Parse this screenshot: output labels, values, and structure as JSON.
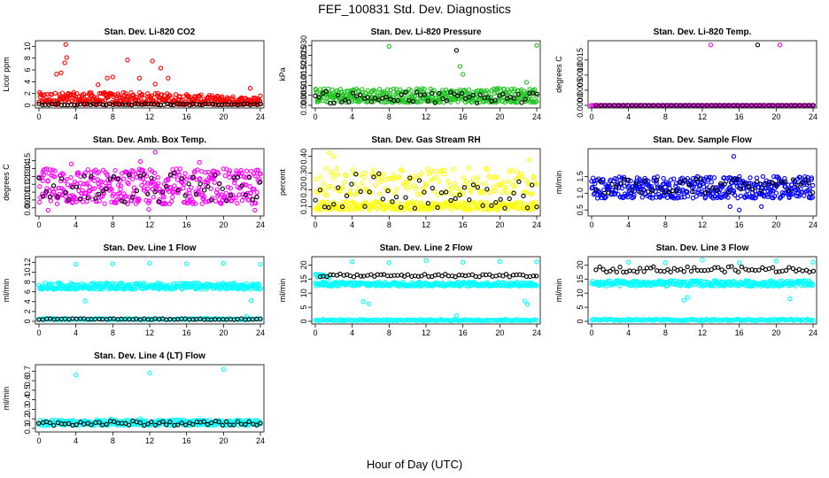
{
  "figure": {
    "title": "FEF_100831  Std. Dev. Diagnostics",
    "xlabel": "Hour of Day (UTC)"
  },
  "colors": {
    "red": "#ff0000",
    "green": "#22c422",
    "magenta": "#ff00ff",
    "yellow": "#ffff00",
    "blue": "#0000ff",
    "cyan": "#00ffff",
    "black": "#000000"
  },
  "chart_data": [
    {
      "type": "scatter",
      "title": "Stan. Dev. Li-820 CO2",
      "ylabel": "Licor ppm",
      "xlim": [
        0,
        24
      ],
      "ylim": [
        0,
        10.5
      ],
      "xticks": [
        "0",
        "4",
        "8",
        "12",
        "16",
        "20",
        "24"
      ],
      "yticks": [
        {
          "v": 0,
          "l": "0"
        },
        {
          "v": 2,
          "l": "2"
        },
        {
          "v": 4,
          "l": "4"
        },
        {
          "v": 6,
          "l": "6"
        },
        {
          "v": 8,
          "l": "8"
        },
        {
          "v": 10,
          "l": "10"
        }
      ],
      "series": [
        {
          "color": "red",
          "band": {
            "start": 0,
            "end": 24,
            "lo": 0.1,
            "hi": 2.2,
            "n": 380,
            "taper": 0.4
          },
          "points": [
            [
              2.9,
              10.3
            ],
            [
              3.0,
              8.1
            ],
            [
              2.8,
              7.2
            ],
            [
              9.6,
              7.7
            ],
            [
              12.3,
              7.5
            ],
            [
              13.2,
              6.3
            ],
            [
              1.9,
              5.3
            ],
            [
              2.4,
              5.5
            ],
            [
              7.4,
              4.6
            ],
            [
              8.0,
              4.8
            ],
            [
              10.9,
              4.6
            ],
            [
              14.0,
              4.6
            ],
            [
              6.4,
              3.5
            ],
            [
              12.6,
              3.6
            ],
            [
              22.9,
              2.9
            ],
            [
              24.0,
              1.6
            ]
          ]
        },
        {
          "color": "black",
          "band": {
            "start": 0,
            "end": 24,
            "lo": 0.05,
            "hi": 0.3,
            "n": 70
          }
        }
      ]
    },
    {
      "type": "scatter",
      "title": "Stan. Dev. Li-820 Pressure",
      "ylabel": "kPa",
      "xlim": [
        0,
        24
      ],
      "ylim": [
        0,
        0.031
      ],
      "xticks": [
        "0",
        "4",
        "8",
        "12",
        "16",
        "20",
        "24"
      ],
      "yticks": [
        {
          "v": 0,
          "l": "0.000"
        },
        {
          "v": 0.005,
          "l": "0.005"
        },
        {
          "v": 0.01,
          "l": "0.010"
        },
        {
          "v": 0.015,
          "l": "0.015"
        },
        {
          "v": 0.02,
          "l": "0.020"
        },
        {
          "v": 0.025,
          "l": "0.025"
        },
        {
          "v": 0.03,
          "l": "0.030"
        }
      ],
      "series": [
        {
          "color": "green",
          "band": {
            "start": 0,
            "end": 24,
            "lo": 0.0015,
            "hi": 0.0085,
            "n": 420
          },
          "points": [
            [
              8.0,
              0.0295
            ],
            [
              24.0,
              0.03
            ],
            [
              15.7,
              0.0195
            ],
            [
              16.0,
              0.0155
            ],
            [
              22.9,
              0.0115
            ]
          ]
        },
        {
          "color": "black",
          "band": {
            "start": 0,
            "end": 24,
            "lo": 0.001,
            "hi": 0.007,
            "n": 60
          },
          "points": [
            [
              15.3,
              0.0275
            ]
          ]
        }
      ]
    },
    {
      "type": "scatter",
      "title": "Stan. Dev. Li-820 Temp.",
      "ylabel": "degrees C",
      "xlim": [
        0,
        24
      ],
      "ylim": [
        0,
        0.00205
      ],
      "xticks": [
        "0",
        "4",
        "8",
        "12",
        "16",
        "20",
        "24"
      ],
      "yticks": [
        {
          "v": 0,
          "l": "0.0000"
        },
        {
          "v": 0.0005,
          "l": "0.0005"
        },
        {
          "v": 0.001,
          "l": "0.0010"
        },
        {
          "v": 0.0015,
          "l": "0.0015"
        }
      ],
      "series": [
        {
          "color": "magenta",
          "band": {
            "start": 0,
            "end": 24,
            "lo": 0,
            "hi": 0,
            "n": 200
          },
          "points": [
            [
              12.9,
              0.002
            ],
            [
              20.4,
              0.002
            ]
          ]
        },
        {
          "color": "black",
          "band": {
            "start": 0.5,
            "end": 24,
            "lo": 0,
            "hi": 0,
            "n": 50
          },
          "points": [
            [
              18.0,
              0.002
            ]
          ]
        }
      ]
    },
    {
      "type": "scatter",
      "title": "Stan. Dev. Amb. Box Temp.",
      "ylabel": "degrees C",
      "xlim": [
        0,
        24
      ],
      "ylim": [
        0.083,
        0.162
      ],
      "xticks": [
        "0",
        "4",
        "8",
        "12",
        "16",
        "20",
        "24"
      ],
      "yticks": [
        {
          "v": 0.09,
          "l": "0.09"
        },
        {
          "v": 0.1,
          "l": "0.10"
        },
        {
          "v": 0.11,
          "l": "0.11"
        },
        {
          "v": 0.12,
          "l": "0.12"
        },
        {
          "v": 0.13,
          "l": "0.13"
        },
        {
          "v": 0.14,
          "l": "0.14"
        },
        {
          "v": 0.15,
          "l": "0.15"
        }
      ],
      "series": [
        {
          "color": "magenta",
          "band": {
            "start": 0,
            "end": 24,
            "lo": 0.095,
            "hi": 0.14,
            "n": 430
          },
          "points": [
            [
              12.6,
              0.161
            ],
            [
              3.5,
              0.146
            ],
            [
              11.0,
              0.149
            ],
            [
              1.0,
              0.087
            ],
            [
              11.9,
              0.088
            ],
            [
              23.4,
              0.087
            ],
            [
              17.4,
              0.148
            ]
          ]
        },
        {
          "color": "black",
          "band": {
            "start": 0,
            "end": 24,
            "lo": 0.097,
            "hi": 0.135,
            "n": 60
          }
        }
      ]
    },
    {
      "type": "scatter",
      "title": "Stan. Dev. Gas Stream RH",
      "ylabel": "percent",
      "xlim": [
        0,
        24
      ],
      "ylim": [
        0.06,
        0.43
      ],
      "xticks": [
        "0",
        "4",
        "8",
        "12",
        "16",
        "20",
        "24"
      ],
      "yticks": [
        {
          "v": 0.1,
          "l": "0.10"
        },
        {
          "v": 0.2,
          "l": "0.20"
        },
        {
          "v": 0.3,
          "l": "0.30"
        },
        {
          "v": 0.4,
          "l": "0.40"
        }
      ],
      "series": [
        {
          "color": "yellow",
          "band": {
            "start": 0,
            "end": 24,
            "lo": 0.08,
            "hi": 0.13,
            "n": 260
          }
        },
        {
          "color": "yellow",
          "band": {
            "start": 0,
            "end": 24,
            "lo": 0.17,
            "hi": 0.33,
            "n": 180
          },
          "points": [
            [
              1.5,
              0.42
            ],
            [
              2.0,
              0.4
            ],
            [
              23.2,
              0.38
            ]
          ]
        },
        {
          "color": "black",
          "band": {
            "start": 0,
            "end": 24,
            "lo": 0.09,
            "hi": 0.3,
            "n": 50
          }
        }
      ]
    },
    {
      "type": "scatter",
      "title": "Stan. Dev. Sample Flow",
      "ylabel": "ml/min",
      "xlim": [
        0,
        24
      ],
      "ylim": [
        0.4,
        2.25
      ],
      "xticks": [
        "0",
        "4",
        "8",
        "12",
        "16",
        "20",
        "24"
      ],
      "yticks": [
        {
          "v": 0.5,
          "l": "0.5"
        },
        {
          "v": 1.0,
          "l": "1.0"
        },
        {
          "v": 1.5,
          "l": "1.5"
        }
      ],
      "series": [
        {
          "color": "blue",
          "band": {
            "start": 0,
            "end": 24,
            "lo": 0.85,
            "hi": 1.5,
            "n": 430
          },
          "points": [
            [
              15.4,
              2.1
            ],
            [
              15.0,
              0.6
            ],
            [
              16.0,
              0.5
            ],
            [
              18.4,
              0.6
            ]
          ]
        },
        {
          "color": "black",
          "band": {
            "start": 0.5,
            "end": 24,
            "lo": 1.0,
            "hi": 1.45,
            "n": 55
          }
        }
      ]
    },
    {
      "type": "scatter",
      "title": "Stan. Dev. Line 1 Flow",
      "ylabel": "ml/min",
      "xlim": [
        0,
        24
      ],
      "ylim": [
        0,
        12.6
      ],
      "xticks": [
        "0",
        "4",
        "8",
        "12",
        "16",
        "20",
        "24"
      ],
      "yticks": [
        {
          "v": 0,
          "l": "0"
        },
        {
          "v": 2,
          "l": "2"
        },
        {
          "v": 4,
          "l": "4"
        },
        {
          "v": 6,
          "l": "6"
        },
        {
          "v": 8,
          "l": "8"
        },
        {
          "v": 10,
          "l": "10"
        },
        {
          "v": 12,
          "l": "12"
        }
      ],
      "series": [
        {
          "color": "cyan",
          "band": {
            "start": 0,
            "end": 24,
            "lo": 6.5,
            "hi": 7.8,
            "n": 330
          },
          "points": [
            [
              4.0,
              11.6
            ],
            [
              8.0,
              11.7
            ],
            [
              12.0,
              11.8
            ],
            [
              16.0,
              11.7
            ],
            [
              20.0,
              11.8
            ],
            [
              24.0,
              11.6
            ],
            [
              5.0,
              4.2
            ],
            [
              23.0,
              4.2
            ],
            [
              22.5,
              1.0
            ]
          ]
        },
        {
          "color": "cyan",
          "band": {
            "start": 0,
            "end": 24,
            "lo": 0.3,
            "hi": 0.6,
            "n": 120
          }
        },
        {
          "color": "black",
          "band": {
            "start": 0,
            "end": 24,
            "lo": 0.35,
            "hi": 0.55,
            "n": 60
          }
        }
      ]
    },
    {
      "type": "scatter",
      "title": "Stan. Dev. Line 2 Flow",
      "ylabel": "ml/min",
      "xlim": [
        0,
        24
      ],
      "ylim": [
        0,
        22
      ],
      "xticks": [
        "0",
        "4",
        "8",
        "12",
        "16",
        "20",
        "24"
      ],
      "yticks": [
        {
          "v": 0,
          "l": "0"
        },
        {
          "v": 5,
          "l": "5"
        },
        {
          "v": 10,
          "l": "10"
        },
        {
          "v": 15,
          "l": "15"
        },
        {
          "v": 20,
          "l": "20"
        }
      ],
      "series": [
        {
          "color": "cyan",
          "band": {
            "start": 0,
            "end": 24,
            "lo": 12.5,
            "hi": 14.0,
            "n": 300
          },
          "points": [
            [
              4.0,
              21.2
            ],
            [
              8.0,
              20.8
            ],
            [
              12.0,
              21.6
            ],
            [
              16.0,
              21.0
            ],
            [
              20.0,
              21.3
            ],
            [
              24.0,
              21.1
            ],
            [
              15.3,
              2.0
            ],
            [
              5.2,
              7.0
            ],
            [
              5.8,
              6.2
            ],
            [
              22.7,
              7.2
            ],
            [
              23.0,
              6.0
            ]
          ]
        },
        {
          "color": "cyan",
          "band": {
            "start": 0,
            "end": 24,
            "lo": 0.2,
            "hi": 0.7,
            "n": 150
          }
        },
        {
          "color": "cyan",
          "band": {
            "start": 0,
            "end": 1.5,
            "lo": 15.5,
            "hi": 16.8,
            "n": 15
          }
        },
        {
          "color": "black",
          "band": {
            "start": 0.5,
            "end": 24,
            "lo": 15.8,
            "hi": 16.8,
            "n": 65
          }
        }
      ]
    },
    {
      "type": "scatter",
      "title": "Stan. Dev. Line 3 Flow",
      "ylabel": "ml/min",
      "xlim": [
        0,
        24
      ],
      "ylim": [
        0,
        22
      ],
      "xticks": [
        "0",
        "4",
        "8",
        "12",
        "16",
        "20",
        "24"
      ],
      "yticks": [
        {
          "v": 0,
          "l": "0"
        },
        {
          "v": 5,
          "l": "5"
        },
        {
          "v": 10,
          "l": "10"
        },
        {
          "v": 15,
          "l": "15"
        },
        {
          "v": 20,
          "l": "20"
        }
      ],
      "series": [
        {
          "color": "cyan",
          "band": {
            "start": 0,
            "end": 24,
            "lo": 12.5,
            "hi": 14.5,
            "n": 300
          },
          "points": [
            [
              4.0,
              21.0
            ],
            [
              8.0,
              20.8
            ],
            [
              12.0,
              21.8
            ],
            [
              16.0,
              20.8
            ],
            [
              20.0,
              21.4
            ],
            [
              24.0,
              21.0
            ],
            [
              10.0,
              7.5
            ],
            [
              10.4,
              8.5
            ],
            [
              21.5,
              8.0
            ]
          ]
        },
        {
          "color": "cyan",
          "band": {
            "start": 0,
            "end": 24,
            "lo": 0.2,
            "hi": 0.8,
            "n": 150
          }
        },
        {
          "color": "black",
          "band": {
            "start": 0.5,
            "end": 24,
            "lo": 17.5,
            "hi": 19.5,
            "n": 65
          }
        }
      ]
    },
    {
      "type": "scatter",
      "title": "Stan. Dev. Line 4 (LT) Flow",
      "ylabel": "ml/min",
      "xlim": [
        0,
        24
      ],
      "ylim": [
        0.09,
        0.74
      ],
      "xticks": [
        "0",
        "4",
        "8",
        "12",
        "16",
        "20",
        "24"
      ],
      "yticks": [
        {
          "v": 0.1,
          "l": "0.1"
        },
        {
          "v": 0.2,
          "l": "0.2"
        },
        {
          "v": 0.3,
          "l": "0.3"
        },
        {
          "v": 0.4,
          "l": "0.4"
        },
        {
          "v": 0.5,
          "l": "0.5"
        },
        {
          "v": 0.6,
          "l": "0.6"
        },
        {
          "v": 0.7,
          "l": "0.7"
        }
      ],
      "series": [
        {
          "color": "cyan",
          "band": {
            "start": 0,
            "end": 24,
            "lo": 0.13,
            "hi": 0.19,
            "n": 300
          },
          "points": [
            [
              4.0,
              0.66
            ],
            [
              12.0,
              0.68
            ],
            [
              20.0,
              0.72
            ],
            [
              7.8,
              0.2
            ],
            [
              11.0,
              0.2
            ]
          ]
        },
        {
          "color": "black",
          "band": {
            "start": 0,
            "end": 24,
            "lo": 0.13,
            "hi": 0.18,
            "n": 60
          }
        }
      ]
    }
  ]
}
